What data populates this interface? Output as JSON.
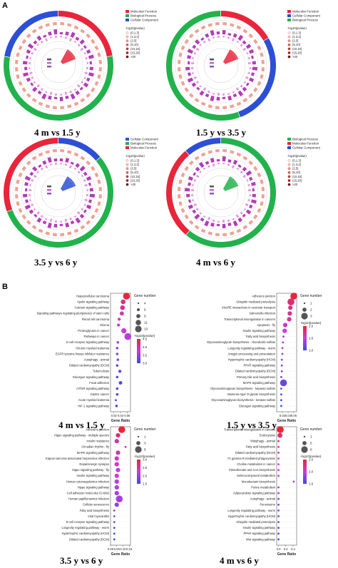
{
  "panels": {
    "A": "A",
    "B": "B"
  },
  "colors": {
    "mf": "#e8253a",
    "bp": "#22b24c",
    "cc": "#2d4fd6",
    "inner_bar": "#b43cb8",
    "lollipop_high": "#e8253a",
    "lollipop_low": "#3a4fe0"
  },
  "circos": [
    {
      "label": "4 m vs 1.5 y",
      "legend": [
        "Molecular Function",
        "Biological Process",
        "Cellular Component"
      ],
      "legend_colors": [
        "mf",
        "bp",
        "cc"
      ],
      "sectors": [
        {
          "cat": "mf",
          "n": 8
        },
        {
          "cat": "bp",
          "n": 20
        },
        {
          "cat": "cc",
          "n": 8
        }
      ]
    },
    {
      "label": "1.5 y vs 3.5 y",
      "legend": [
        "Molecular Function",
        "Cellular Component",
        "Biological Process"
      ],
      "legend_colors": [
        "mf",
        "cc",
        "bp"
      ],
      "sectors": [
        {
          "cat": "mf",
          "n": 6
        },
        {
          "cat": "cc",
          "n": 10
        },
        {
          "cat": "bp",
          "n": 20
        }
      ]
    },
    {
      "label": "3.5 y vs 6 y",
      "legend": [
        "Cellular Component",
        "Biological Process",
        "Molecular Function"
      ],
      "legend_colors": [
        "cc",
        "bp",
        "mf"
      ],
      "sectors": [
        {
          "cat": "cc",
          "n": 5
        },
        {
          "cat": "bp",
          "n": 20
        },
        {
          "cat": "mf",
          "n": 11
        }
      ]
    },
    {
      "label": "4 m vs 6 y",
      "legend": [
        "Biological Process",
        "Molecular Function",
        "Cellular Component"
      ],
      "legend_colors": [
        "bp",
        "mf",
        "cc"
      ],
      "sectors": [
        {
          "cat": "bp",
          "n": 22
        },
        {
          "cat": "mf",
          "n": 10
        },
        {
          "cat": "cc",
          "n": 4
        }
      ]
    }
  ],
  "circos_pvalue_legend": {
    "title": "-log10(pvalue)",
    "bins": [
      "(0,1.3]",
      "(1.3,2]",
      "(2,5]",
      "(5,10]",
      "(10,15]",
      "(15,20]",
      ">20"
    ],
    "colors": [
      "#fde0dc",
      "#f9b9b0",
      "#f28f80",
      "#e25a4a",
      "#c73030",
      "#a01818",
      "#6e0000"
    ]
  },
  "chart_data": [
    {
      "type": "scatter",
      "title": "4 m vs 1.5 y",
      "xlabel": "Gene Ratio",
      "xticks": [
        "0.02",
        "0.04",
        "0.06"
      ],
      "xlim": [
        0.01,
        0.07
      ],
      "size_legend_title": "Gene number",
      "size_legend": [
        "4",
        "6",
        "9",
        "11",
        "13"
      ],
      "color_legend_title": "-log10(pvalue)",
      "color_legend_ticks": [
        "4.5",
        "4.0",
        "3.5",
        "3.0"
      ],
      "terms": [
        "Hepatocellular carcinoma",
        "Apelin signaling pathway",
        "Calcium signaling pathway",
        "Signaling pathways regulating pluripotency of stem cells",
        "Renal cell carcinoma",
        "Glioma",
        "Proteoglycans in cancer",
        "Pathways in cancer",
        "B cell receptor signaling pathway",
        "Chronic myeloid leukemia",
        "EGFR tyrosine kinase inhibitor resistance",
        "Autophagy - animal",
        "Dilated cardiomyopathy (DCM)",
        "Tuberculosis",
        "Glucagon signaling pathway",
        "Focal adhesion",
        "mTOR signaling pathway",
        "Gastric cancer",
        "Acute myeloid leukemia",
        "HIF-1 signaling pathway"
      ],
      "x": [
        0.058,
        0.048,
        0.046,
        0.044,
        0.036,
        0.034,
        0.05,
        0.062,
        0.032,
        0.03,
        0.03,
        0.032,
        0.03,
        0.038,
        0.03,
        0.04,
        0.03,
        0.03,
        0.026,
        0.028
      ],
      "genes": [
        13,
        9,
        9,
        8,
        6,
        6,
        10,
        13,
        5,
        5,
        5,
        5,
        5,
        6,
        5,
        7,
        5,
        5,
        4,
        5
      ],
      "neglogp": [
        4.7,
        4.3,
        4.2,
        4.0,
        3.9,
        3.8,
        3.8,
        3.7,
        3.5,
        3.4,
        3.4,
        3.3,
        3.2,
        3.2,
        3.1,
        3.1,
        3.0,
        3.0,
        2.9,
        2.9
      ]
    },
    {
      "type": "scatter",
      "title": "1.5 y vs 3.5 y",
      "xlabel": "Gene Ratio",
      "xticks": [
        "0.02",
        "0.04",
        "0.06"
      ],
      "xlim": [
        0.0,
        0.07
      ],
      "size_legend_title": "Gene number",
      "size_legend": [
        "1",
        "2",
        "3"
      ],
      "color_legend_title": "-log10(pvalue)",
      "color_legend_ticks": [
        "2.0",
        "1.5",
        "1.0"
      ],
      "terms": [
        "Adherens junction",
        "Ubiquitin mediated proteolysis",
        "SNARE interactions in vesicular transport",
        "Salmonella infection",
        "Transcriptional misregulation in cancers",
        "Apoptosis - fly",
        "Insulin signaling pathway",
        "Fatty acid biosynthesis",
        "Glycosaminoglycan biosynthesis - chondroitin sulfate",
        "Longevity regulating pathway - worm",
        "Antigen processing and presentation",
        "Hypertrophic cardiomyopathy (HCM)",
        "PPAR signaling pathway",
        "Dilated cardiomyopathy (DCM)",
        "Primary bile acid biosynthesis",
        "MAPK signaling pathway",
        "Glycosaminoglycan biosynthesis - heparan sulfate",
        "Mannose type O-glycan biosynthesis",
        "Glycosaminoglycan biosynthesis - keratan sulfate",
        "Glucagon signaling pathway"
      ],
      "x": [
        0.06,
        0.05,
        0.048,
        0.046,
        0.044,
        0.03,
        0.028,
        0.024,
        0.022,
        0.02,
        0.02,
        0.018,
        0.018,
        0.018,
        0.016,
        0.024,
        0.016,
        0.016,
        0.016,
        0.016
      ],
      "genes": [
        3,
        3,
        2,
        2,
        2,
        2,
        2,
        1,
        1,
        1,
        1,
        1,
        1,
        1,
        1,
        3,
        1,
        1,
        1,
        1
      ],
      "neglogp": [
        2.2,
        2.0,
        1.9,
        1.9,
        1.8,
        1.7,
        1.6,
        1.5,
        1.5,
        1.4,
        1.4,
        1.3,
        1.3,
        1.3,
        1.2,
        1.2,
        1.1,
        1.1,
        1.0,
        1.0
      ]
    },
    {
      "type": "scatter",
      "title": "3.5 y vs 6 y",
      "xlabel": "Gene Ratio",
      "xticks": [
        "0.00",
        "0.05",
        "0.10",
        "0.15"
      ],
      "xlim": [
        0.0,
        0.16
      ],
      "size_legend_title": "Gene number",
      "size_legend": [
        "1",
        "3",
        "5"
      ],
      "color_legend_title": "-log10(pvalue)",
      "color_legend_ticks": [
        "3.0",
        "2.5",
        "2.0",
        "1.5"
      ],
      "terms": [
        "Adherens junction",
        "Hippo signaling pathway - multiple species",
        "Insulin resistance",
        "Circadian rhythm - fly",
        "MAPK signaling pathway",
        "Kaposi sarcoma-associated herpesvirus infection",
        "Dopaminergic synapse",
        "Hippo signaling pathway - fly",
        "Insulin signaling pathway",
        "Human cytomegalovirus infection",
        "Hippo signaling pathway",
        "Cell adhesion molecules (CAMs)",
        "Human papillomavirus infection",
        "Cellular senescence",
        "Fatty acid biosynthesis",
        "Viral myocarditis",
        "B cell receptor signaling pathway",
        "Longevity regulating pathway - worm",
        "Hypertrophic cardiomyopathy (HCM)",
        "Dilated cardiomyopathy (DCM)"
      ],
      "x": [
        0.09,
        0.06,
        0.05,
        0.12,
        0.06,
        0.05,
        0.05,
        0.06,
        0.05,
        0.05,
        0.05,
        0.05,
        0.07,
        0.05,
        0.03,
        0.03,
        0.03,
        0.03,
        0.03,
        0.03
      ],
      "genes": [
        5,
        3,
        3,
        1,
        3,
        3,
        3,
        3,
        3,
        3,
        3,
        3,
        5,
        3,
        1,
        1,
        1,
        1,
        1,
        1
      ],
      "neglogp": [
        3.1,
        2.8,
        2.6,
        2.6,
        2.5,
        2.4,
        2.4,
        2.3,
        2.3,
        2.2,
        2.2,
        2.1,
        2.1,
        2.0,
        1.9,
        1.8,
        1.7,
        1.6,
        1.5,
        1.5
      ]
    },
    {
      "type": "scatter",
      "title": "4 m vs 6 y",
      "xlabel": "Gene Ratio",
      "xticks": [
        "0.0",
        "0.2",
        "0.4"
      ],
      "xlim": [
        -0.05,
        0.5
      ],
      "size_legend_title": "Gene number",
      "size_legend": [
        "1",
        "5",
        "8"
      ],
      "color_legend_title": "-log10(pvalue)",
      "color_legend_ticks": [
        "2.5",
        "2.0",
        "1.5"
      ],
      "terms": [
        "Transcriptional misregulation in cancers",
        "Endocytosis",
        "Mitophagy - animal",
        "Fatty acid biosynthesis",
        "Dilated cardiomyopathy (DCM)",
        "Fc gamma R-mediated phagocytosis",
        "Choline metabolism in cancer",
        "Pantothenate and CoA biosynthesis",
        "Selenocompound metabolism",
        "Monobactam biosynthesis",
        "Purine metabolism",
        "Adipocytokine signaling pathway",
        "Autophagy - animal",
        "Peroxisome",
        "Longevity regulating pathway - worm",
        "Hypertrophic cardiomyopathy (HCM)",
        "Ubiquitin mediated proteolysis",
        "Insulin signaling pathway",
        "PPAR signaling pathway",
        "Wnt signaling pathway"
      ],
      "x": [
        0.05,
        0.04,
        0.0,
        0.0,
        0.0,
        0.0,
        0.0,
        0.0,
        0.0,
        0.42,
        0.0,
        0.0,
        0.0,
        0.0,
        0.0,
        0.0,
        0.0,
        0.0,
        0.0,
        0.0
      ],
      "genes": [
        8,
        5,
        1,
        1,
        1,
        1,
        1,
        1,
        1,
        1,
        1,
        1,
        1,
        1,
        1,
        1,
        1,
        1,
        1,
        1
      ],
      "neglogp": [
        2.8,
        2.6,
        2.5,
        2.4,
        2.3,
        2.2,
        2.1,
        2.1,
        2.0,
        2.0,
        1.9,
        1.9,
        1.8,
        1.7,
        1.7,
        1.6,
        1.6,
        1.5,
        1.5,
        1.4
      ]
    }
  ]
}
